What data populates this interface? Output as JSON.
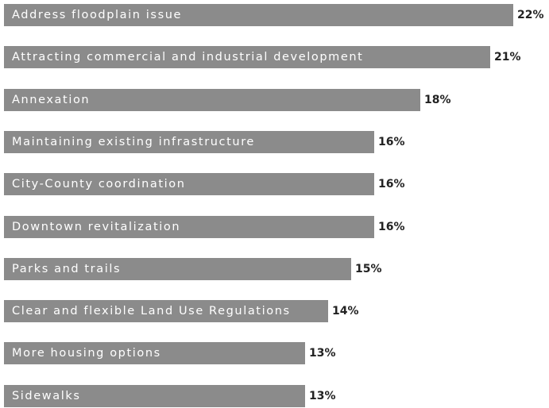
{
  "chart_data": {
    "type": "bar",
    "orientation": "horizontal",
    "bar_color": "#8b8b8b",
    "label_color": "#ffffff",
    "value_color": "#222222",
    "categories": [
      "Address floodplain issue",
      "Attracting commercial and industrial development",
      "Annexation",
      "Maintaining existing infrastructure",
      "City-County coordination",
      "Downtown revitalization",
      "Parks and trails",
      "Clear and flexible Land Use Regulations",
      "More housing options",
      "Sidewalks"
    ],
    "values": [
      22,
      21,
      18,
      16,
      16,
      16,
      15,
      14,
      13,
      13
    ],
    "value_labels": [
      "22%",
      "21%",
      "18%",
      "16%",
      "16%",
      "16%",
      "15%",
      "14%",
      "13%",
      "13%"
    ],
    "xlim": [
      0,
      22
    ]
  }
}
